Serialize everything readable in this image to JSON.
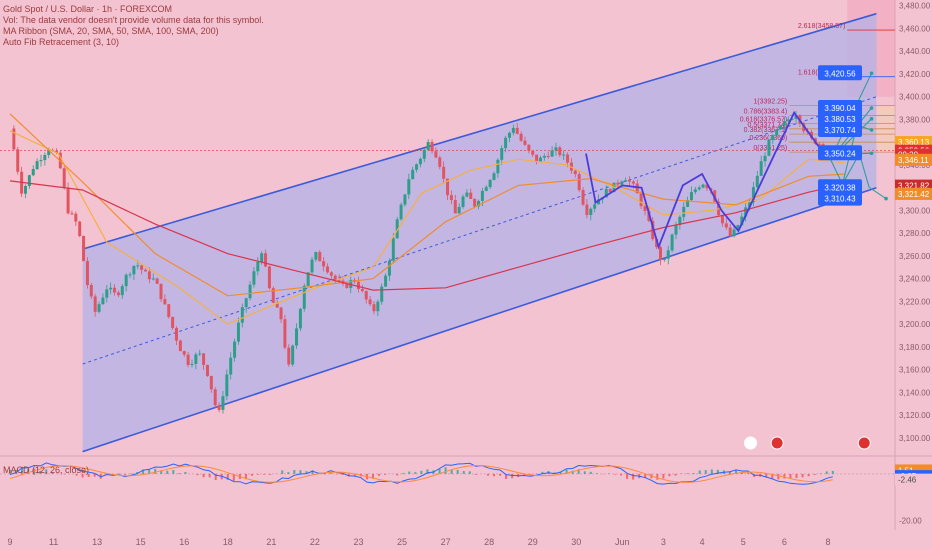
{
  "header": {
    "title": "Gold Spot / U.S. Dollar · 1h · FOREXCOM",
    "vol_note": "Vol: The data vendor doesn't provide volume data for this symbol.",
    "ma_ribbon": "MA Ribbon (SMA, 20, SMA, 50, SMA, 100, SMA, 200)",
    "fib": "Auto Fib Retracement (3, 10)"
  },
  "macd_label": "MACD (12, 26, close)",
  "colors": {
    "background": "#f3c3d2",
    "channel_line": "#3b5bdb",
    "channel_fill": "#b3b2e8",
    "up_candle": "#2e9e8a",
    "down_candle": "#e05561",
    "ma_fast": "#f5b041",
    "ma_mid": "#f08c2a",
    "ma_slow": "#d9354b",
    "projection": "#2f9e9e",
    "badge": "#2962ff",
    "macd_line": "#2962ff",
    "signal_line": "#ff8a3d"
  },
  "chart_data": {
    "type": "candlestick",
    "symbol": "Gold Spot / U.S. Dollar",
    "interval": "1h",
    "ylim": [
      3085,
      3485
    ],
    "y_ticks": [
      "3,480.00",
      "3,460.00",
      "3,440.00",
      "3,420.00",
      "3,400.00",
      "3,380.00",
      "3,360.00",
      "3,340.00",
      "3,320.00",
      "3,300.00",
      "3,280.00",
      "3,260.00",
      "3,240.00",
      "3,220.00",
      "3,200.00",
      "3,180.00",
      "3,160.00",
      "3,140.00",
      "3,120.00",
      "3,100.00"
    ],
    "x_ticks": [
      "9",
      "11",
      "13",
      "15",
      "16",
      "18",
      "21",
      "22",
      "23",
      "25",
      "27",
      "28",
      "29",
      "30",
      "Jun",
      "3",
      "4",
      "5",
      "6",
      "8"
    ],
    "price_path": [
      [
        0,
        3372
      ],
      [
        0.5,
        3315
      ],
      [
        1,
        3340
      ],
      [
        1.6,
        3355
      ],
      [
        2,
        3346
      ],
      [
        2.4,
        3300
      ],
      [
        2.8,
        3287
      ],
      [
        3.2,
        3235
      ],
      [
        3.5,
        3210
      ],
      [
        4,
        3232
      ],
      [
        4.4,
        3225
      ],
      [
        4.8,
        3242
      ],
      [
        5.2,
        3254
      ],
      [
        5.6,
        3244
      ],
      [
        6,
        3238
      ],
      [
        6.5,
        3210
      ],
      [
        7,
        3180
      ],
      [
        7.4,
        3165
      ],
      [
        7.8,
        3175
      ],
      [
        8.2,
        3155
      ],
      [
        8.6,
        3118
      ],
      [
        9,
        3160
      ],
      [
        9.5,
        3205
      ],
      [
        10,
        3240
      ],
      [
        10.4,
        3265
      ],
      [
        10.8,
        3222
      ],
      [
        11.2,
        3205
      ],
      [
        11.5,
        3160
      ],
      [
        11.8,
        3192
      ],
      [
        12.2,
        3240
      ],
      [
        12.6,
        3262
      ],
      [
        13,
        3252
      ],
      [
        13.4,
        3240
      ],
      [
        13.8,
        3232
      ],
      [
        14.2,
        3240
      ],
      [
        14.6,
        3226
      ],
      [
        15,
        3210
      ],
      [
        15.5,
        3240
      ],
      [
        16,
        3290
      ],
      [
        16.5,
        3330
      ],
      [
        17,
        3348
      ],
      [
        17.3,
        3360
      ],
      [
        17.7,
        3346
      ],
      [
        18,
        3320
      ],
      [
        18.4,
        3297
      ],
      [
        18.8,
        3315
      ],
      [
        19.2,
        3305
      ],
      [
        19.6,
        3320
      ],
      [
        20,
        3335
      ],
      [
        20.4,
        3360
      ],
      [
        20.8,
        3374
      ],
      [
        21.1,
        3362
      ],
      [
        21.4,
        3352
      ],
      [
        21.8,
        3343
      ],
      [
        22.2,
        3350
      ],
      [
        22.6,
        3353
      ],
      [
        23,
        3344
      ],
      [
        23.4,
        3330
      ],
      [
        23.8,
        3298
      ],
      [
        24.2,
        3308
      ],
      [
        24.6,
        3316
      ],
      [
        25,
        3322
      ],
      [
        25.4,
        3330
      ],
      [
        25.8,
        3320
      ],
      [
        26.3,
        3295
      ],
      [
        26.7,
        3267
      ],
      [
        27,
        3252
      ],
      [
        27.4,
        3280
      ],
      [
        27.8,
        3300
      ],
      [
        28.2,
        3316
      ],
      [
        28.6,
        3325
      ],
      [
        29,
        3318
      ],
      [
        29.4,
        3290
      ],
      [
        29.8,
        3276
      ],
      [
        30.2,
        3292
      ],
      [
        30.6,
        3310
      ],
      [
        31,
        3340
      ],
      [
        31.4,
        3361
      ],
      [
        31.8,
        3372
      ],
      [
        32.2,
        3381
      ],
      [
        32.5,
        3386
      ],
      [
        32.8,
        3372
      ],
      [
        33.1,
        3362
      ],
      [
        33.4,
        3360
      ],
      [
        33.7,
        3352
      ],
      [
        34,
        3346
      ],
      [
        34.2,
        3352
      ]
    ],
    "channel": {
      "upper": [
        [
          3,
          3266
        ],
        [
          35.8,
          3473
        ]
      ],
      "lower": [
        [
          3,
          3088
        ],
        [
          35.8,
          3320
        ]
      ],
      "mid": [
        [
          3,
          3165
        ],
        [
          35.8,
          3400
        ]
      ]
    },
    "moving_averages": [
      {
        "name": "SMA 20",
        "color": "#f5b041",
        "points": [
          [
            0,
            3370
          ],
          [
            2,
            3350
          ],
          [
            4,
            3272
          ],
          [
            7,
            3232
          ],
          [
            9,
            3200
          ],
          [
            11,
            3218
          ],
          [
            13,
            3235
          ],
          [
            15,
            3250
          ],
          [
            17,
            3315
          ],
          [
            19,
            3335
          ],
          [
            21,
            3345
          ],
          [
            23,
            3340
          ],
          [
            25,
            3320
          ],
          [
            27,
            3296
          ],
          [
            29,
            3300
          ],
          [
            31,
            3310
          ],
          [
            33,
            3345
          ],
          [
            34.5,
            3342
          ]
        ]
      },
      {
        "name": "SMA 50",
        "color": "#f08c2a",
        "points": [
          [
            0,
            3385
          ],
          [
            3,
            3325
          ],
          [
            6,
            3262
          ],
          [
            9,
            3225
          ],
          [
            12,
            3232
          ],
          [
            15,
            3240
          ],
          [
            18,
            3290
          ],
          [
            21,
            3322
          ],
          [
            24,
            3328
          ],
          [
            27,
            3310
          ],
          [
            30,
            3305
          ],
          [
            33,
            3330
          ],
          [
            34.5,
            3332
          ]
        ]
      },
      {
        "name": "SMA 100",
        "color": "#d9354b",
        "points": [
          [
            0,
            3326
          ],
          [
            3,
            3318
          ],
          [
            6,
            3288
          ],
          [
            9,
            3262
          ],
          [
            12,
            3246
          ],
          [
            15,
            3230
          ],
          [
            18,
            3232
          ],
          [
            21,
            3250
          ],
          [
            24,
            3268
          ],
          [
            27,
            3285
          ],
          [
            30,
            3298
          ],
          [
            33,
            3316
          ],
          [
            34.5,
            3323
          ]
        ]
      }
    ],
    "zigzag": [
      [
        23.8,
        3350
      ],
      [
        24.2,
        3307
      ],
      [
        25.3,
        3322
      ],
      [
        26.1,
        3320
      ],
      [
        26.8,
        3268
      ],
      [
        27.8,
        3322
      ],
      [
        28.6,
        3332
      ],
      [
        29.4,
        3300
      ],
      [
        30.1,
        3282
      ],
      [
        32.4,
        3386
      ],
      [
        33.8,
        3345
      ]
    ],
    "fib_levels": [
      {
        "label": "2.618(3458.57)",
        "price": 3458.57
      },
      {
        "label": "1.618(3417.58)",
        "price": 3417.58
      },
      {
        "label": "1(3392.25)",
        "price": 3392.25
      },
      {
        "label": "0.786(3383.4)",
        "price": 3383.4
      },
      {
        "label": "0.618(3376.57)",
        "price": 3376.57
      },
      {
        "label": "0.5(3371.74)",
        "price": 3371.74
      },
      {
        "label": "0.382(3367.1)",
        "price": 3367.1
      },
      {
        "label": "0.236(3360)",
        "price": 3360
      },
      {
        "label": "0(3351.25)",
        "price": 3351.25
      }
    ],
    "projections": [
      {
        "from": [
          33.9,
          3345
        ],
        "to": [
          35.6,
          3420.56
        ]
      },
      {
        "from": [
          33.9,
          3345
        ],
        "to": [
          35.6,
          3390.04
        ]
      },
      {
        "from": [
          33.9,
          3345
        ],
        "to": [
          35.6,
          3380.53
        ]
      },
      {
        "from": [
          33.9,
          3345
        ],
        "to": [
          34.4,
          3323
        ],
        "mid": [
          35.0,
          3375
        ],
        "end": [
          35.6,
          3370.74
        ]
      },
      {
        "from": [
          34.4,
          3323
        ],
        "to": [
          35.1,
          3350
        ],
        "end": [
          35.6,
          3350.24
        ]
      },
      {
        "from": [
          35.1,
          3350
        ],
        "to": [
          35.5,
          3320.38
        ],
        "end": [
          36.2,
          3310.43
        ]
      }
    ],
    "projection_labels": [
      {
        "text": "3,420.56",
        "price": 3420.56
      },
      {
        "text": "3,390.04",
        "price": 3390.04
      },
      {
        "text": "3,380.53",
        "price": 3380.53
      },
      {
        "text": "3,370.74",
        "price": 3370.74
      },
      {
        "text": "3,350.24",
        "price": 3350.24
      },
      {
        "text": "3,320.38",
        "price": 3320.38
      },
      {
        "text": "3,310.43",
        "price": 3310.43
      }
    ],
    "price_badges": [
      {
        "text": "3,360.13",
        "price": 3360.13,
        "color": "#f5a623"
      },
      {
        "text": "3,352.56",
        "price": 3352.56,
        "color": "#e03131"
      },
      {
        "text": "09:20",
        "price": 3349,
        "color": "#e03131"
      },
      {
        "text": "3,346.11",
        "price": 3344.5,
        "color": "#f08c2a"
      },
      {
        "text": "3,321.82",
        "price": 3321.82,
        "color": "#c92a2a"
      },
      {
        "text": "3,321.42",
        "price": 3314.5,
        "color": "#f08c2a"
      }
    ],
    "macd": {
      "ylim": [
        -22,
        6
      ],
      "y_ticks": [
        "0.00",
        "-20.00"
      ],
      "badges": [
        {
          "text": "1.51",
          "value": 1.51,
          "color": "#f08c2a"
        },
        {
          "text": "-0.95",
          "value": -0.95,
          "color": "#2962ff"
        },
        {
          "text": "-2.46",
          "value": -2.46,
          "color": "#f3c3d2"
        }
      ]
    }
  }
}
